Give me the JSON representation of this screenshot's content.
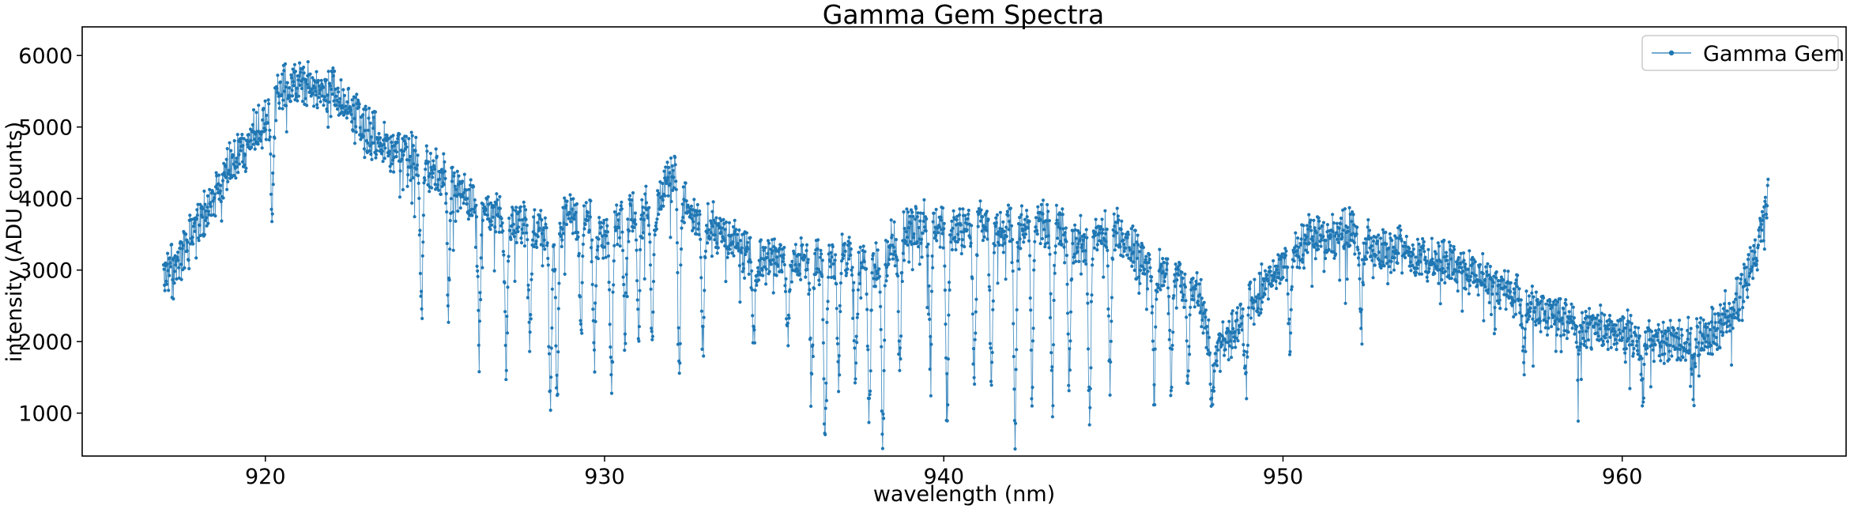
{
  "chart_data": {
    "type": "line",
    "title": "Gamma Gem Spectra",
    "xlabel": "wavelength (nm)",
    "ylabel": "intensity (ADU counts)",
    "xlim": [
      914.6,
      966.6
    ],
    "ylim": [
      400,
      6400
    ],
    "xticks": [
      920,
      930,
      940,
      950,
      960
    ],
    "yticks": [
      1000,
      2000,
      3000,
      4000,
      5000,
      6000
    ],
    "xtick_labels": [
      "920",
      "930",
      "940",
      "950",
      "960"
    ],
    "ytick_labels": [
      "1000",
      "2000",
      "3000",
      "4000",
      "5000",
      "6000"
    ],
    "grid": false,
    "legend": "top-right",
    "series": [
      {
        "name": "Gamma Gem",
        "color": "#1f77b4",
        "marker": "dot",
        "x_range": [
          917.0,
          964.3
        ],
        "envelope": [
          [
            917.0,
            2950
          ],
          [
            917.5,
            3150
          ],
          [
            918.0,
            3650
          ],
          [
            918.5,
            4050
          ],
          [
            919.0,
            4500
          ],
          [
            919.5,
            4800
          ],
          [
            920.0,
            5100
          ],
          [
            920.5,
            5550
          ],
          [
            921.0,
            5650
          ],
          [
            921.5,
            5550
          ],
          [
            922.0,
            5450
          ],
          [
            922.5,
            5200
          ],
          [
            923.0,
            4950
          ],
          [
            923.5,
            4800
          ],
          [
            924.0,
            4650
          ],
          [
            924.5,
            4500
          ],
          [
            925.0,
            4400
          ],
          [
            925.5,
            4200
          ],
          [
            926.0,
            4000
          ],
          [
            926.5,
            3850
          ],
          [
            927.0,
            3750
          ],
          [
            927.5,
            3650
          ],
          [
            928.0,
            3550
          ],
          [
            928.5,
            3500
          ],
          [
            929.0,
            3800
          ],
          [
            929.5,
            3700
          ],
          [
            930.0,
            3450
          ],
          [
            930.5,
            3700
          ],
          [
            931.0,
            3850
          ],
          [
            931.5,
            3800
          ],
          [
            932.0,
            4500
          ],
          [
            932.5,
            3800
          ],
          [
            933.0,
            3650
          ],
          [
            933.5,
            3500
          ],
          [
            934.0,
            3250
          ],
          [
            934.5,
            3100
          ],
          [
            935.0,
            3150
          ],
          [
            935.5,
            3100
          ],
          [
            936.0,
            3150
          ],
          [
            936.5,
            3100
          ],
          [
            937.0,
            3250
          ],
          [
            937.5,
            3100
          ],
          [
            938.0,
            3050
          ],
          [
            938.5,
            3400
          ],
          [
            939.0,
            3550
          ],
          [
            939.5,
            3650
          ],
          [
            940.0,
            3600
          ],
          [
            940.5,
            3550
          ],
          [
            941.0,
            3650
          ],
          [
            941.5,
            3650
          ],
          [
            942.0,
            3550
          ],
          [
            942.5,
            3700
          ],
          [
            943.0,
            3650
          ],
          [
            943.5,
            3500
          ],
          [
            944.0,
            3400
          ],
          [
            944.5,
            3500
          ],
          [
            945.0,
            3550
          ],
          [
            945.5,
            3350
          ],
          [
            946.0,
            3050
          ],
          [
            946.5,
            2950
          ],
          [
            947.0,
            2800
          ],
          [
            947.5,
            2700
          ],
          [
            948.0,
            1750
          ],
          [
            948.5,
            2150
          ],
          [
            949.0,
            2550
          ],
          [
            949.5,
            2800
          ],
          [
            950.0,
            3050
          ],
          [
            950.5,
            3300
          ],
          [
            951.0,
            3550
          ],
          [
            951.5,
            3400
          ],
          [
            952.0,
            3550
          ],
          [
            952.5,
            3350
          ],
          [
            953.0,
            3250
          ],
          [
            953.5,
            3300
          ],
          [
            954.0,
            3200
          ],
          [
            954.5,
            3150
          ],
          [
            955.0,
            3100
          ],
          [
            955.5,
            2950
          ],
          [
            956.0,
            2850
          ],
          [
            956.5,
            2700
          ],
          [
            957.0,
            2600
          ],
          [
            957.5,
            2450
          ],
          [
            958.0,
            2400
          ],
          [
            958.5,
            2300
          ],
          [
            959.0,
            2250
          ],
          [
            959.5,
            2150
          ],
          [
            960.0,
            2100
          ],
          [
            960.5,
            2050
          ],
          [
            961.0,
            2000
          ],
          [
            961.5,
            1950
          ],
          [
            962.0,
            2000
          ],
          [
            962.5,
            2100
          ],
          [
            963.0,
            2300
          ],
          [
            963.5,
            2600
          ],
          [
            964.0,
            3300
          ],
          [
            964.3,
            4100
          ]
        ],
        "absorption_lines": [
          [
            920.2,
            3800
          ],
          [
            924.6,
            2300
          ],
          [
            925.4,
            2700
          ],
          [
            926.3,
            2000
          ],
          [
            927.1,
            1900
          ],
          [
            927.8,
            2100
          ],
          [
            928.4,
            1250
          ],
          [
            928.6,
            1300
          ],
          [
            929.3,
            2200
          ],
          [
            929.7,
            1850
          ],
          [
            930.2,
            1500
          ],
          [
            930.6,
            2100
          ],
          [
            931.0,
            2200
          ],
          [
            931.4,
            2000
          ],
          [
            932.2,
            1450
          ],
          [
            932.9,
            1700
          ],
          [
            934.4,
            1900
          ],
          [
            935.4,
            2000
          ],
          [
            936.1,
            1500
          ],
          [
            936.5,
            700
          ],
          [
            936.9,
            1500
          ],
          [
            937.4,
            1650
          ],
          [
            937.8,
            850
          ],
          [
            938.2,
            700
          ],
          [
            938.7,
            1700
          ],
          [
            939.6,
            1550
          ],
          [
            940.1,
            800
          ],
          [
            940.9,
            1300
          ],
          [
            941.4,
            1350
          ],
          [
            942.1,
            900
          ],
          [
            942.6,
            1300
          ],
          [
            943.2,
            1300
          ],
          [
            943.7,
            1450
          ],
          [
            944.3,
            1000
          ],
          [
            944.9,
            1400
          ],
          [
            946.2,
            1600
          ],
          [
            946.7,
            1350
          ],
          [
            947.2,
            1500
          ],
          [
            947.9,
            1050
          ],
          [
            948.9,
            1300
          ],
          [
            950.2,
            1900
          ],
          [
            952.3,
            2300
          ],
          [
            957.1,
            1600
          ],
          [
            958.7,
            1600
          ],
          [
            960.6,
            1300
          ],
          [
            962.1,
            1500
          ]
        ]
      }
    ]
  }
}
